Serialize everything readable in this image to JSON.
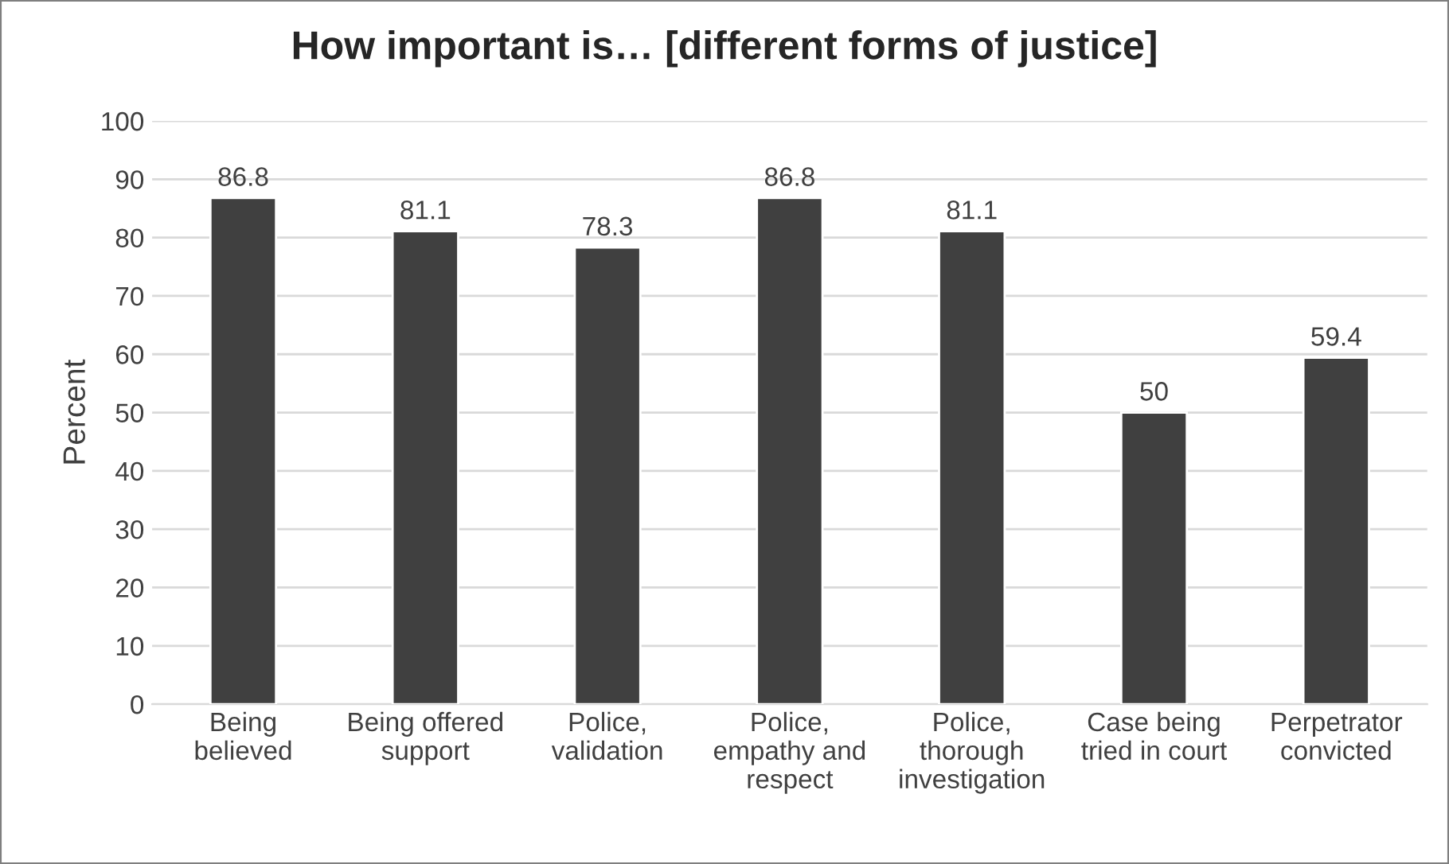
{
  "chart_data": {
    "type": "bar",
    "title": "How important is… [different forms of justice]",
    "ylabel": "Percent",
    "categories": [
      "Being\nbelieved",
      "Being offered\nsupport",
      "Police,\nvalidation",
      "Police,\nempathy and\nrespect",
      "Police,\nthorough\ninvestigation",
      "Case being\ntried in court",
      "Perpetrator\nconvicted"
    ],
    "values": [
      86.8,
      81.1,
      78.3,
      86.8,
      81.1,
      50,
      59.4
    ],
    "color": "#404040",
    "ylim": [
      0,
      100
    ],
    "yticks": [
      0,
      10,
      20,
      30,
      40,
      50,
      60,
      70,
      80,
      90,
      100
    ],
    "grid": "y",
    "data_labels": true
  }
}
